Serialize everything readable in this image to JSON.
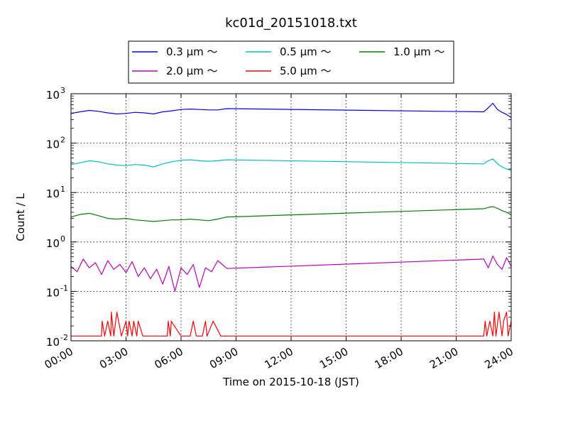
{
  "chart_data": {
    "type": "line",
    "title": "kc01d_20151018.txt",
    "xlabel": "Time on 2015-10-18 (JST)",
    "ylabel": "Count / L",
    "xlim": [
      "00:00",
      "24:00"
    ],
    "ylim": [
      0.01,
      1000
    ],
    "yscale": "log",
    "grid": true,
    "legend_position": "top-center, above plot",
    "x_ticks": [
      "00:00",
      "03:00",
      "06:00",
      "09:00",
      "12:00",
      "15:00",
      "18:00",
      "21:00",
      "24:00"
    ],
    "y_ticks": [
      {
        "value": 0.01,
        "base": "10",
        "exp": "-2"
      },
      {
        "value": 0.1,
        "base": "10",
        "exp": "-1"
      },
      {
        "value": 1,
        "base": "10",
        "exp": "0"
      },
      {
        "value": 10,
        "base": "10",
        "exp": "1"
      },
      {
        "value": 100,
        "base": "10",
        "exp": "2"
      },
      {
        "value": 1000,
        "base": "10",
        "exp": "3"
      }
    ],
    "series": [
      {
        "name": "0.3 µm ～",
        "color": "#0000ff",
        "x": [
          "00:00",
          "00:30",
          "01:00",
          "01:30",
          "02:00",
          "02:30",
          "03:00",
          "03:30",
          "04:00",
          "04:30",
          "05:00",
          "05:30",
          "06:00",
          "06:30",
          "07:00",
          "07:30",
          "08:00",
          "08:30",
          "22:30",
          "22:45",
          "23:00",
          "23:15",
          "23:30",
          "23:45",
          "24:00"
        ],
        "y": [
          400,
          430,
          460,
          440,
          410,
          390,
          400,
          420,
          410,
          390,
          430,
          450,
          480,
          490,
          480,
          470,
          470,
          500,
          430,
          520,
          640,
          480,
          420,
          380,
          330
        ]
      },
      {
        "name": "0.5 µm ～",
        "color": "#00bfbf",
        "x": [
          "00:00",
          "00:30",
          "01:00",
          "01:30",
          "02:00",
          "02:30",
          "03:00",
          "03:30",
          "04:00",
          "04:30",
          "05:00",
          "05:30",
          "06:00",
          "06:30",
          "07:00",
          "07:30",
          "08:00",
          "08:30",
          "22:30",
          "22:45",
          "23:00",
          "23:15",
          "23:30",
          "23:45",
          "24:00"
        ],
        "y": [
          37,
          40,
          44,
          42,
          38,
          36,
          35,
          37,
          36,
          33,
          38,
          42,
          45,
          46,
          44,
          43,
          44,
          46,
          38,
          44,
          48,
          38,
          33,
          30,
          28
        ]
      },
      {
        "name": "1.0 µm ～",
        "color": "#007f00",
        "x": [
          "00:00",
          "00:30",
          "01:00",
          "01:30",
          "02:00",
          "02:30",
          "03:00",
          "03:30",
          "04:00",
          "04:30",
          "05:00",
          "05:30",
          "06:00",
          "06:30",
          "07:00",
          "07:30",
          "08:00",
          "08:30",
          "22:30",
          "22:45",
          "23:00",
          "23:15",
          "23:30",
          "23:45",
          "24:00"
        ],
        "y": [
          3.2,
          3.6,
          3.8,
          3.4,
          3.0,
          2.9,
          3.0,
          2.8,
          2.7,
          2.6,
          2.7,
          2.8,
          2.8,
          2.9,
          2.8,
          2.7,
          2.9,
          3.2,
          4.7,
          5.0,
          5.2,
          4.8,
          4.3,
          4.0,
          3.5
        ]
      },
      {
        "name": "2.0 µm ～",
        "color": "#bf00bf",
        "x": [
          "00:00",
          "00:20",
          "00:40",
          "01:00",
          "01:20",
          "01:40",
          "02:00",
          "02:20",
          "02:40",
          "03:00",
          "03:20",
          "03:40",
          "04:00",
          "04:20",
          "04:40",
          "05:00",
          "05:20",
          "05:40",
          "06:00",
          "06:20",
          "06:40",
          "07:00",
          "07:20",
          "07:40",
          "08:00",
          "08:30",
          "22:30",
          "22:45",
          "23:00",
          "23:15",
          "23:30",
          "23:45",
          "24:00"
        ],
        "y": [
          0.32,
          0.25,
          0.45,
          0.3,
          0.38,
          0.22,
          0.42,
          0.28,
          0.35,
          0.24,
          0.4,
          0.2,
          0.3,
          0.18,
          0.28,
          0.14,
          0.32,
          0.1,
          0.3,
          0.22,
          0.35,
          0.12,
          0.3,
          0.25,
          0.42,
          0.29,
          0.45,
          0.3,
          0.52,
          0.35,
          0.28,
          0.48,
          0.32
        ]
      },
      {
        "name": "5.0 µm ～",
        "color": "#ff0000",
        "x": [
          "00:00",
          "00:45",
          "01:40",
          "01:42",
          "01:50",
          "02:00",
          "02:10",
          "02:12",
          "02:20",
          "02:30",
          "02:45",
          "03:00",
          "03:05",
          "03:10",
          "03:20",
          "03:25",
          "03:35",
          "03:40",
          "03:55",
          "04:30",
          "05:15",
          "05:18",
          "05:25",
          "05:28",
          "06:00",
          "06:30",
          "06:40",
          "06:50",
          "07:10",
          "07:20",
          "07:25",
          "07:45",
          "08:10",
          "08:20",
          "22:30",
          "22:35",
          "22:40",
          "22:50",
          "23:00",
          "23:05",
          "23:10",
          "23:20",
          "23:30",
          "23:35",
          "23:45",
          "23:50",
          "24:00"
        ],
        "y": [
          0.0125,
          0.0125,
          0.0125,
          0.025,
          0.0125,
          0.025,
          0.0125,
          0.038,
          0.0125,
          0.038,
          0.0125,
          0.025,
          0.0125,
          0.025,
          0.0125,
          0.025,
          0.0125,
          0.025,
          0.0125,
          0.0125,
          0.0125,
          0.025,
          0.0125,
          0.025,
          0.0125,
          0.0125,
          0.025,
          0.0125,
          0.0125,
          0.025,
          0.0125,
          0.025,
          0.0125,
          0.0125,
          0.0125,
          0.025,
          0.0125,
          0.025,
          0.0125,
          0.038,
          0.0125,
          0.038,
          0.0125,
          0.025,
          0.038,
          0.0125,
          0.025
        ]
      }
    ]
  }
}
